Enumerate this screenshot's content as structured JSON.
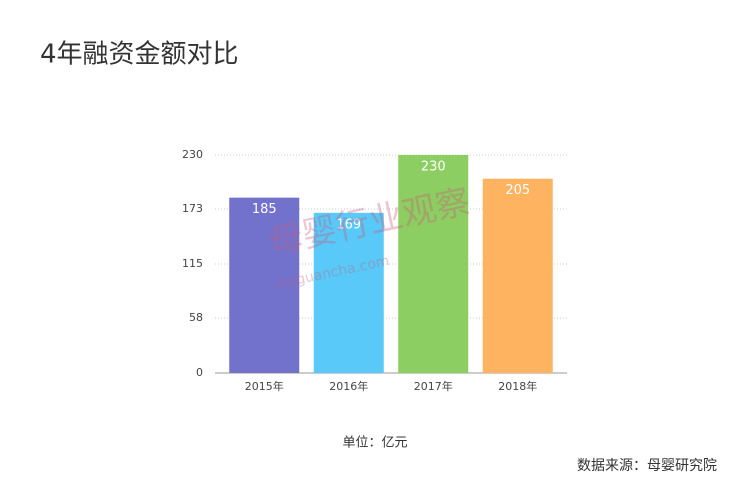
{
  "chart_data": {
    "type": "bar",
    "title": "4年融资金额对比",
    "categories": [
      "2015年",
      "2016年",
      "2017年",
      "2018年"
    ],
    "values": [
      185,
      169,
      230,
      205
    ],
    "colors": [
      "#7272cc",
      "#58c9f8",
      "#8dce62",
      "#fdb35f"
    ],
    "ylim": [
      0,
      230
    ],
    "yticks": [
      0,
      58,
      115,
      173,
      230
    ],
    "grid": true,
    "unit_label": "单位：亿元",
    "source": "数据来源：母婴研究院",
    "watermark": "母婴行业观察",
    "watermark_url": "myguancha.com"
  }
}
